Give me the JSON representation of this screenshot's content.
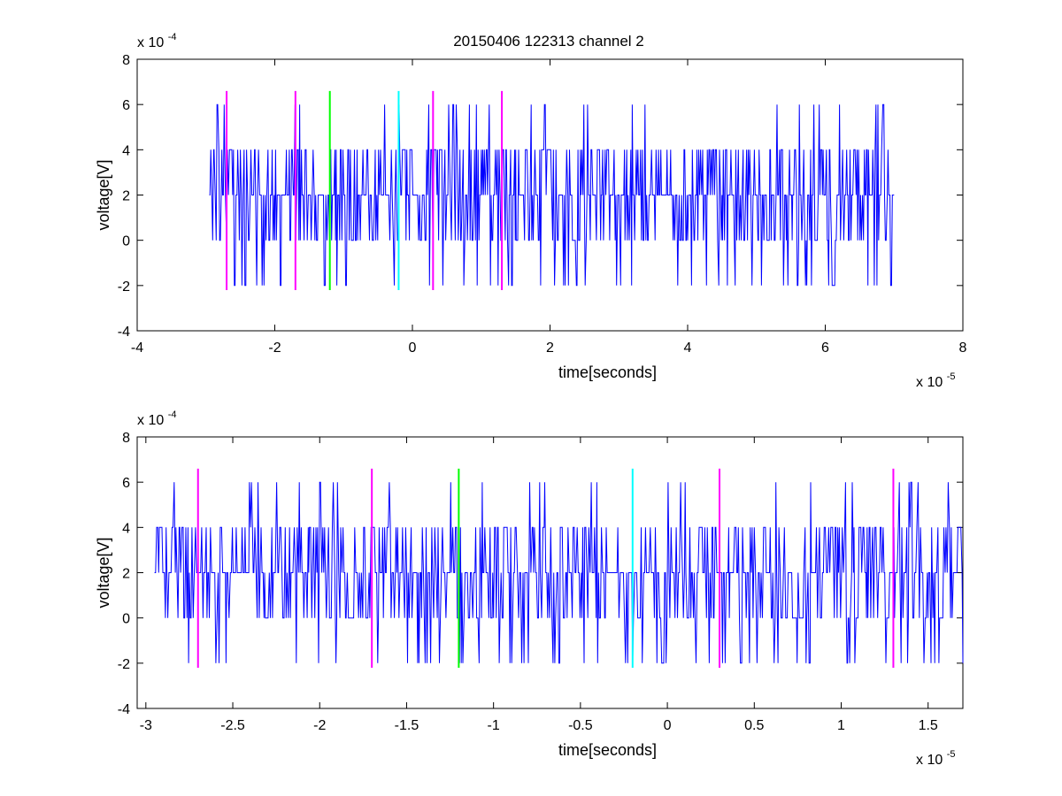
{
  "figure": {
    "title": "20150406 122313 channel 2",
    "background": "#ffffff",
    "trace_color": "#0000ff",
    "marker_colors": {
      "magenta": "#ff00ff",
      "green": "#00ff00",
      "cyan": "#00ffff"
    }
  },
  "chart_data": [
    {
      "type": "line",
      "title": "20150406 122313 channel 2",
      "xlabel": "time[seconds]",
      "ylabel": "voltage[V]",
      "x_exponent_label": "x 10",
      "x_exponent": "-5",
      "y_exponent_label": "x 10",
      "y_exponent": "-4",
      "xlim": [
        -4,
        8
      ],
      "ylim": [
        -4,
        8
      ],
      "xticks": [
        -4,
        -2,
        0,
        2,
        4,
        6,
        8
      ],
      "xtick_labels": [
        "-4",
        "-2",
        "0",
        "2",
        "4",
        "6",
        "8"
      ],
      "yticks": [
        -4,
        -2,
        0,
        2,
        4,
        6,
        8
      ],
      "ytick_labels": [
        "-4",
        "-2",
        "0",
        "2",
        "4",
        "6",
        "8"
      ],
      "grid": false,
      "legend": "none",
      "series": [
        {
          "color": "#0000ff",
          "x_range": [
            -2.95,
            7.0
          ],
          "levels": [
            -2,
            0,
            2,
            4,
            6
          ],
          "baseline": 2
        }
      ],
      "markers": [
        {
          "x": -2.7,
          "color": "magenta"
        },
        {
          "x": -1.7,
          "color": "magenta"
        },
        {
          "x": -1.2,
          "color": "green"
        },
        {
          "x": -0.2,
          "color": "cyan"
        },
        {
          "x": 0.3,
          "color": "magenta"
        },
        {
          "x": 1.3,
          "color": "magenta"
        }
      ],
      "marker_y_range": [
        -2.2,
        6.6
      ]
    },
    {
      "type": "line",
      "title": "",
      "xlabel": "time[seconds]",
      "ylabel": "voltage[V]",
      "x_exponent_label": "x 10",
      "x_exponent": "-5",
      "y_exponent_label": "x 10",
      "y_exponent": "-4",
      "xlim": [
        -3.05,
        1.7
      ],
      "ylim": [
        -4,
        8
      ],
      "xticks": [
        -3,
        -2.5,
        -2,
        -1.5,
        -1,
        -0.5,
        0,
        0.5,
        1,
        1.5
      ],
      "xtick_labels": [
        "-3",
        "-2.5",
        "-2",
        "-1.5",
        "-1",
        "-0.5",
        "0",
        "0.5",
        "1",
        "1.5"
      ],
      "yticks": [
        -4,
        -2,
        0,
        2,
        4,
        6,
        8
      ],
      "ytick_labels": [
        "-4",
        "-2",
        "0",
        "2",
        "4",
        "6",
        "8"
      ],
      "grid": false,
      "legend": "none",
      "series": [
        {
          "color": "#0000ff",
          "x_range": [
            -2.95,
            1.7
          ],
          "levels": [
            -2,
            0,
            2,
            4,
            6
          ],
          "baseline": 2
        }
      ],
      "markers": [
        {
          "x": -2.7,
          "color": "magenta"
        },
        {
          "x": -1.7,
          "color": "magenta"
        },
        {
          "x": -1.2,
          "color": "green"
        },
        {
          "x": -0.2,
          "color": "cyan"
        },
        {
          "x": 0.3,
          "color": "magenta"
        },
        {
          "x": 1.3,
          "color": "magenta"
        }
      ],
      "marker_y_range": [
        -2.2,
        6.6
      ]
    }
  ]
}
